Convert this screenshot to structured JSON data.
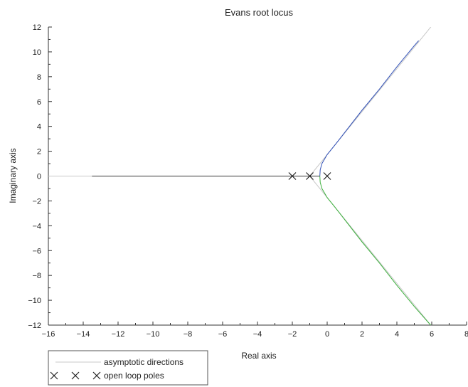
{
  "chart_data": {
    "type": "line",
    "title": "Evans root locus",
    "xlabel": "Real axis",
    "ylabel": "Imaginary axis",
    "xlim": [
      -16,
      8
    ],
    "ylim": [
      -12,
      12
    ],
    "xticks": [
      -16,
      -14,
      -12,
      -10,
      -8,
      -6,
      -4,
      -2,
      0,
      2,
      4,
      6,
      8
    ],
    "yticks": [
      -12,
      -10,
      -8,
      -6,
      -4,
      -2,
      0,
      2,
      4,
      6,
      8,
      10,
      12
    ],
    "xtick_labels": [
      "−16",
      "−14",
      "−12",
      "−10",
      "−8",
      "−6",
      "−4",
      "−2",
      "0",
      "2",
      "4",
      "6",
      "8"
    ],
    "ytick_labels": [
      "−12",
      "−10",
      "−8",
      "−6",
      "−4",
      "−2",
      "0",
      "2",
      "4",
      "6",
      "8",
      "10",
      "12"
    ],
    "grid": false,
    "legend_position": "bottom-left, outside plot",
    "open_loop_poles": [
      [
        -2,
        0
      ],
      [
        -1,
        0
      ],
      [
        0,
        0
      ]
    ],
    "series": [
      {
        "name": "asymptotic directions",
        "role": "asymptote",
        "color": "#c8c8c8",
        "segments": [
          [
            [
              -16.2,
              0
            ],
            [
              -1,
              0
            ]
          ],
          [
            [
              -1,
              0
            ],
            [
              6,
              12.1
            ]
          ],
          [
            [
              -1,
              0
            ],
            [
              6,
              -12.1
            ]
          ]
        ]
      },
      {
        "role": "locus-real-branch",
        "color": "#333333",
        "points": [
          [
            -13.5,
            0
          ],
          [
            -2,
            0
          ],
          [
            -1,
            0
          ],
          [
            -0.42,
            0
          ]
        ]
      },
      {
        "role": "locus-upper-branch",
        "color": "#3050b8",
        "points": [
          [
            -0.42,
            0
          ],
          [
            -0.4,
            0.5
          ],
          [
            -0.3,
            1.0
          ],
          [
            0,
            1.732
          ],
          [
            0.5,
            2.6
          ],
          [
            1,
            3.5
          ],
          [
            2,
            5.3
          ],
          [
            3,
            7.0
          ],
          [
            4,
            8.8
          ],
          [
            5,
            10.5
          ],
          [
            5.25,
            10.9
          ]
        ]
      },
      {
        "role": "locus-lower-branch",
        "color": "#3cb03c",
        "points": [
          [
            -0.42,
            0
          ],
          [
            -0.4,
            -0.5
          ],
          [
            -0.3,
            -1.0
          ],
          [
            0,
            -1.732
          ],
          [
            0.5,
            -2.6
          ],
          [
            1,
            -3.5
          ],
          [
            2,
            -5.3
          ],
          [
            3,
            -7.0
          ],
          [
            4,
            -8.8
          ],
          [
            5,
            -10.5
          ],
          [
            6,
            -12.1
          ]
        ]
      }
    ],
    "legend": [
      {
        "label": "asymptotic directions",
        "symbol": "line",
        "color": "#c8c8c8"
      },
      {
        "label": "open loop poles",
        "symbol": "cross",
        "color": "#222222"
      }
    ]
  }
}
